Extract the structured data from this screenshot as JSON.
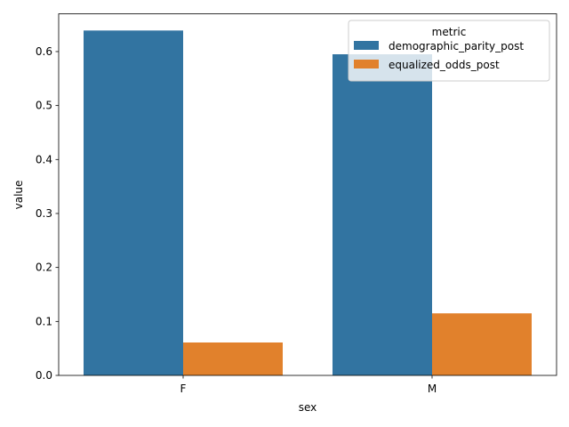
{
  "chart_data": {
    "type": "bar",
    "xlabel": "sex",
    "ylabel": "value",
    "categories": [
      "F",
      "M"
    ],
    "ylim": [
      0,
      0.67
    ],
    "yticks": [
      0.0,
      0.1,
      0.2,
      0.3,
      0.4,
      0.5,
      0.6
    ],
    "ytick_labels": [
      "0.0",
      "0.1",
      "0.2",
      "0.3",
      "0.4",
      "0.5",
      "0.6"
    ],
    "grid": false,
    "legend": {
      "title": "metric",
      "placement": "upper-right"
    },
    "series": [
      {
        "name": "demographic_parity_post",
        "color": "#3274a1",
        "values": [
          0.639,
          0.595
        ]
      },
      {
        "name": "equalized_odds_post",
        "color": "#e1812c",
        "values": [
          0.061,
          0.115
        ]
      }
    ]
  }
}
